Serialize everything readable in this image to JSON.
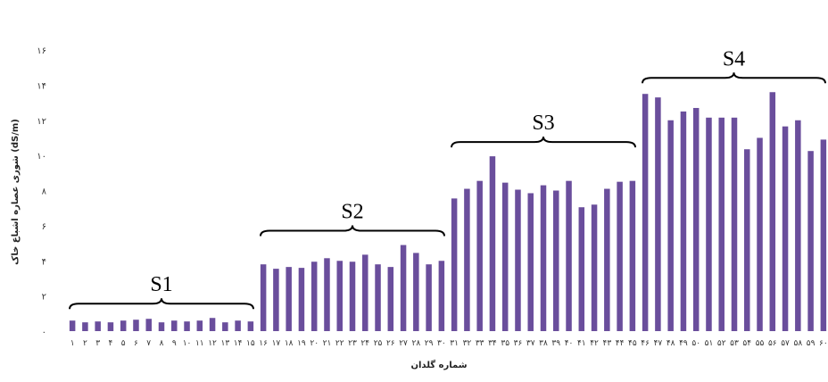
{
  "chart_data": {
    "type": "bar",
    "xlabel": "شماره گلدان",
    "ylabel": "شوری عصاره اشباع خاک (dS/m)",
    "ylim": [
      0,
      16
    ],
    "yticks": [
      "۰",
      "۲",
      "۴",
      "۶",
      "۸",
      "۱۰",
      "۱۲",
      "۱۴",
      "۱۶"
    ],
    "grid": false,
    "bar_color": "#6a4e9c",
    "categories": [
      "۱",
      "۲",
      "۳",
      "۴",
      "۵",
      "۶",
      "۷",
      "۸",
      "۹",
      "۱۰",
      "۱۱",
      "۱۲",
      "۱۳",
      "۱۴",
      "۱۵",
      "۱۶",
      "۱۷",
      "۱۸",
      "۱۹",
      "۲۰",
      "۲۱",
      "۲۲",
      "۲۳",
      "۲۴",
      "۲۵",
      "۲۶",
      "۲۷",
      "۲۸",
      "۲۹",
      "۳۰",
      "۳۱",
      "۳۲",
      "۳۳",
      "۳۴",
      "۳۵",
      "۳۶",
      "۳۷",
      "۳۸",
      "۳۹",
      "۴۰",
      "۴۱",
      "۴۲",
      "۴۳",
      "۴۴",
      "۴۵",
      "۴۶",
      "۴۷",
      "۴۸",
      "۴۹",
      "۵۰",
      "۵۱",
      "۵۲",
      "۵۳",
      "۵۴",
      "۵۵",
      "۵۶",
      "۵۷",
      "۵۸",
      "۵۹",
      "۶۰"
    ],
    "values": [
      0.6,
      0.5,
      0.55,
      0.5,
      0.6,
      0.65,
      0.7,
      0.5,
      0.6,
      0.55,
      0.6,
      0.75,
      0.5,
      0.6,
      0.55,
      3.8,
      3.55,
      3.65,
      3.6,
      3.95,
      4.15,
      4.0,
      3.95,
      4.35,
      3.8,
      3.65,
      4.9,
      4.45,
      3.8,
      4.0,
      7.55,
      8.1,
      8.55,
      9.95,
      8.45,
      8.05,
      7.85,
      8.3,
      8.0,
      8.55,
      7.05,
      7.2,
      8.1,
      8.5,
      8.55,
      13.5,
      13.3,
      12.0,
      12.5,
      12.7,
      12.15,
      12.15,
      12.15,
      10.35,
      11.0,
      13.6,
      11.65,
      12.0,
      10.25,
      10.9
    ],
    "groups": [
      {
        "label": "S1",
        "start": 1,
        "end": 15
      },
      {
        "label": "S2",
        "start": 16,
        "end": 30
      },
      {
        "label": "S3",
        "start": 31,
        "end": 45
      },
      {
        "label": "S4",
        "start": 46,
        "end": 60
      }
    ]
  }
}
